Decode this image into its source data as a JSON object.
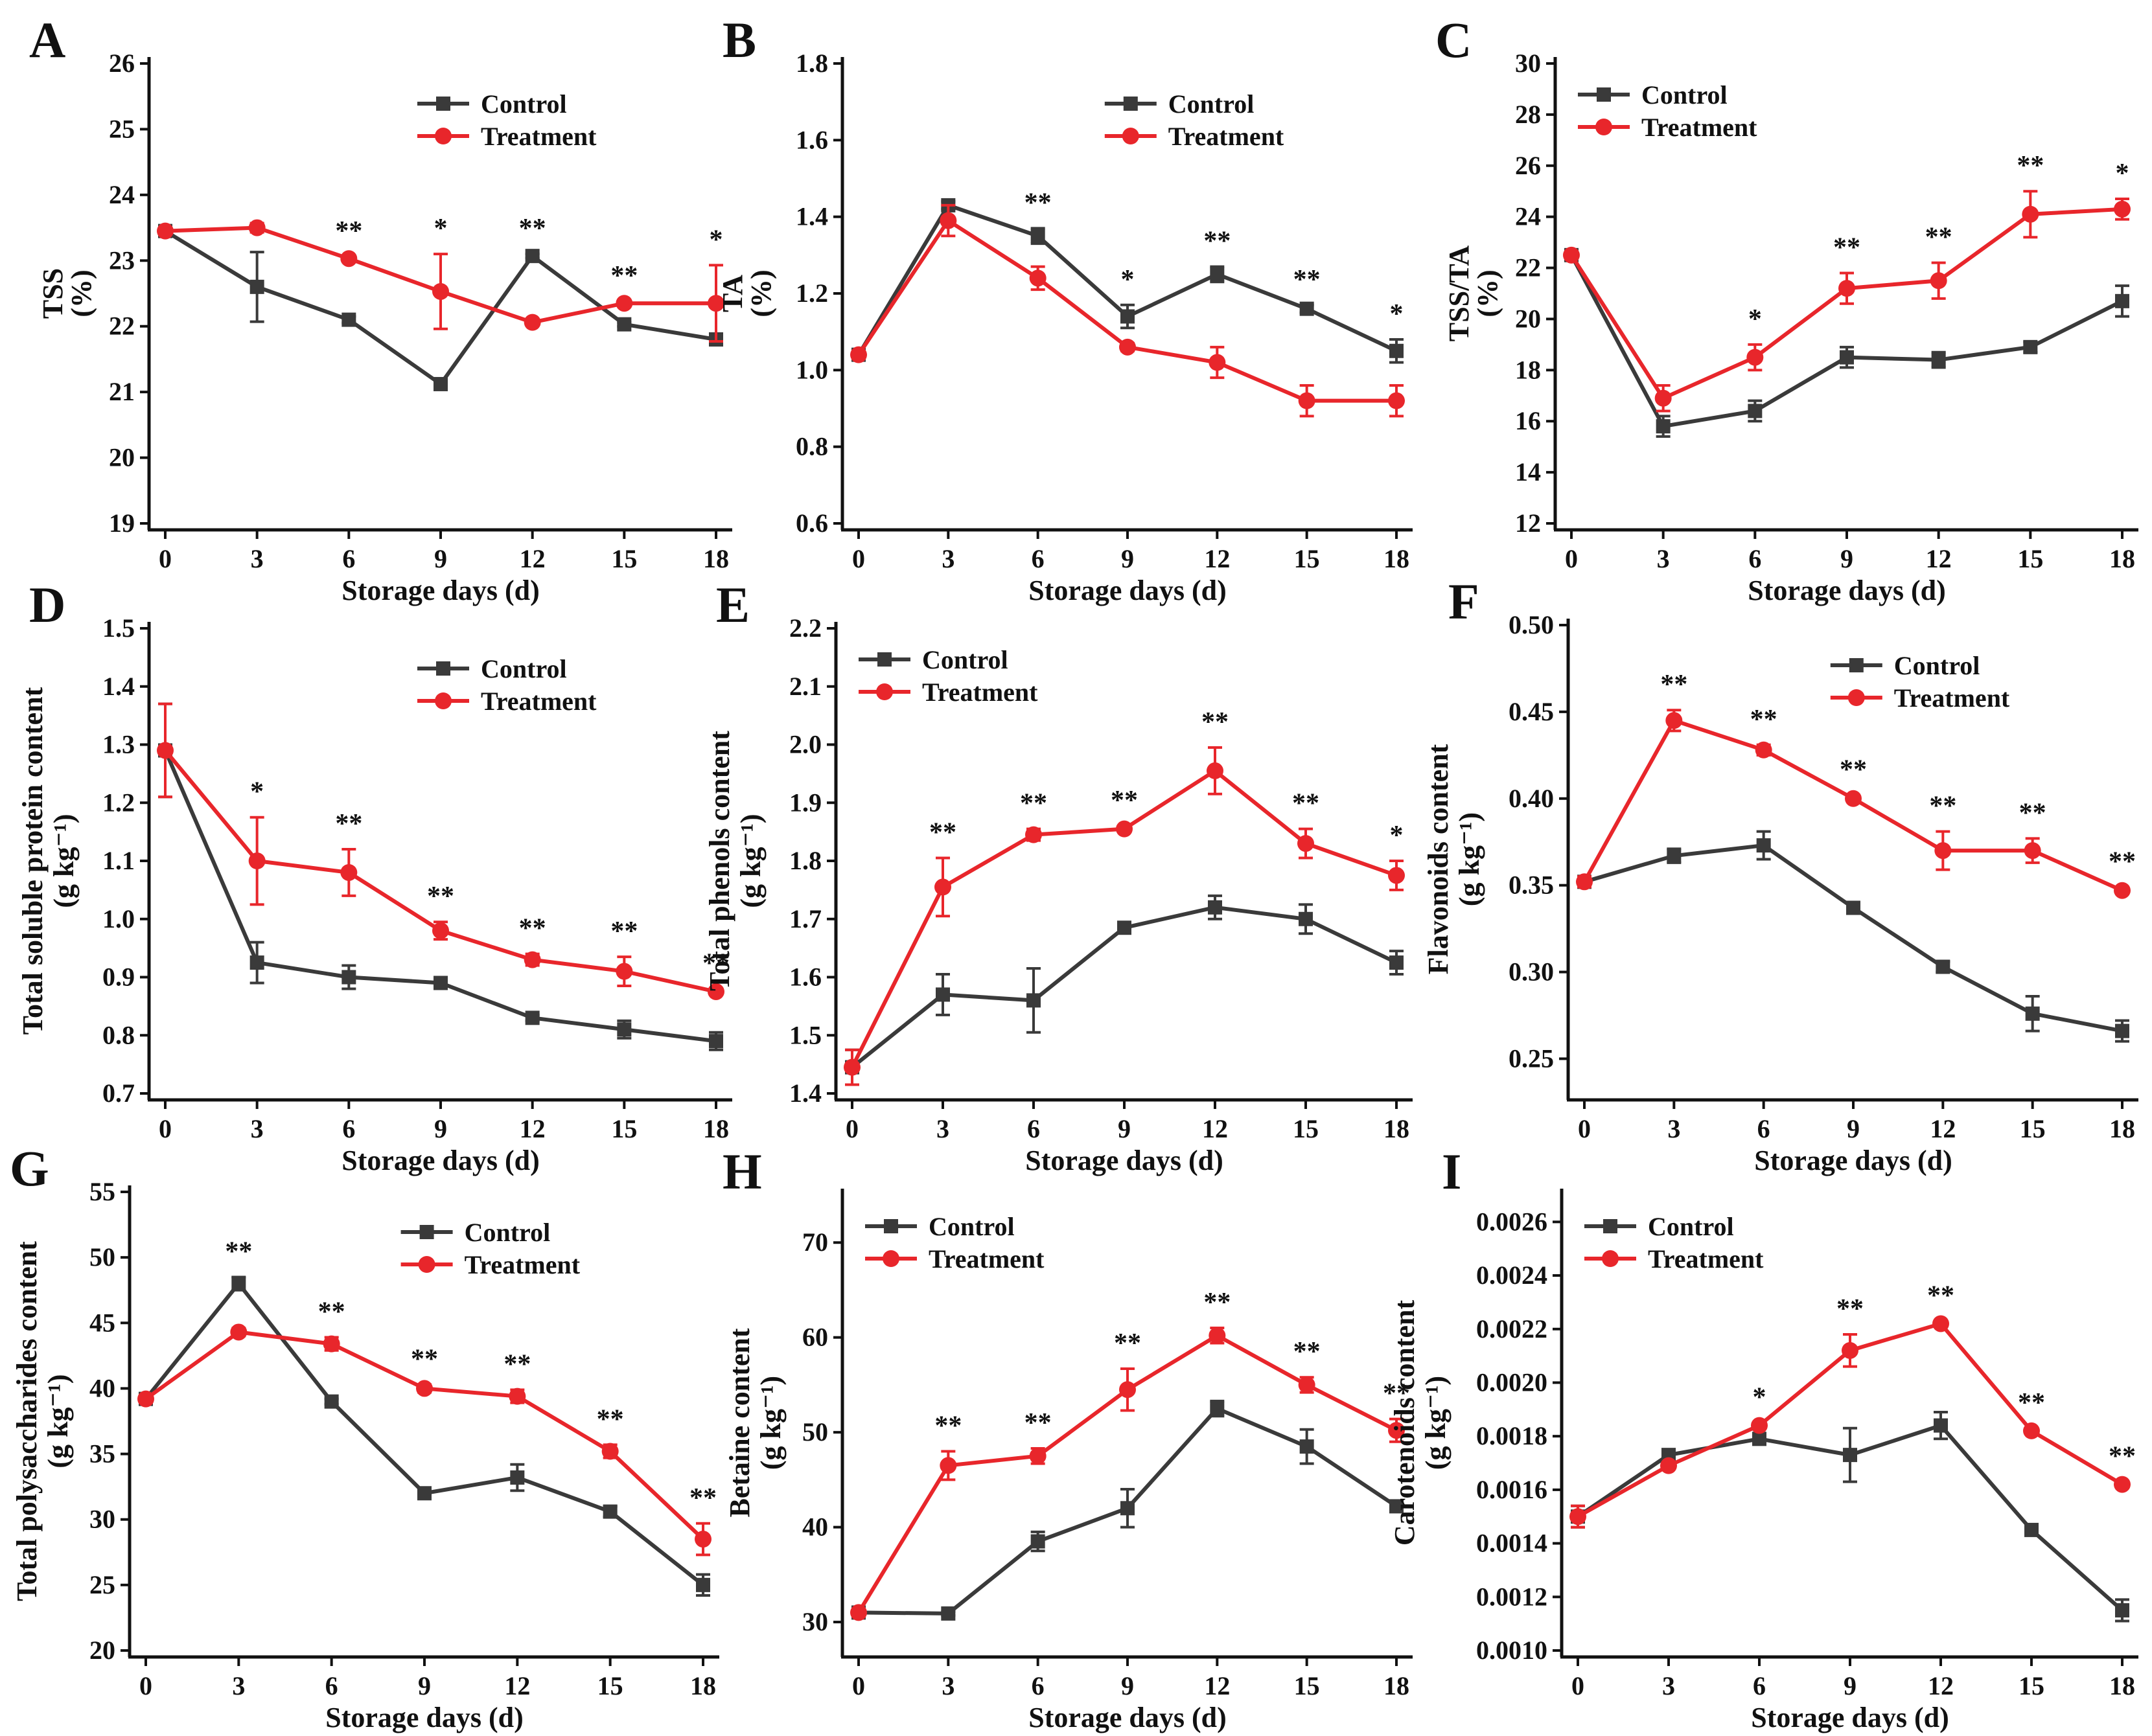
{
  "colors": {
    "control": "#3a3a3a",
    "treatment": "#e8262b"
  },
  "legend": {
    "control": "Control",
    "treatment": "Treatment"
  },
  "chart_data": [
    {
      "type": "line",
      "panel": "A",
      "xlabel": "Storage days (d)",
      "ylabel": [
        "TSS",
        "(%)"
      ],
      "x": [
        0,
        3,
        6,
        9,
        12,
        15,
        18
      ],
      "ylim": [
        19,
        26
      ],
      "yticks": [
        "19",
        "20",
        "21",
        "22",
        "23",
        "24",
        "25",
        "26"
      ],
      "legend_pos": "top-right",
      "series": [
        {
          "name": "Control",
          "values": [
            23.45,
            22.6,
            22.1,
            21.12,
            23.07,
            22.03,
            21.8
          ],
          "errors": [
            0.03,
            0.53,
            0.05,
            0.03,
            0.03,
            0.03,
            0.03
          ]
        },
        {
          "name": "Treatment",
          "values": [
            23.45,
            23.5,
            23.03,
            22.53,
            22.06,
            22.35,
            22.35
          ],
          "errors": [
            0.03,
            0.07,
            0.03,
            0.57,
            0.03,
            0.03,
            0.58
          ]
        }
      ],
      "sig": [
        "",
        "",
        "**",
        "*",
        "**",
        "**",
        "*"
      ]
    },
    {
      "type": "line",
      "panel": "B",
      "xlabel": "Storage days (d)",
      "ylabel": [
        "TA",
        "(%)"
      ],
      "x": [
        0,
        3,
        6,
        9,
        12,
        15,
        18
      ],
      "ylim": [
        0.6,
        1.8
      ],
      "yticks": [
        "0.6",
        "0.8",
        "1.0",
        "1.2",
        "1.4",
        "1.6",
        "1.8"
      ],
      "legend_pos": "top-right",
      "series": [
        {
          "name": "Control",
          "values": [
            1.04,
            1.43,
            1.35,
            1.14,
            1.25,
            1.16,
            1.05
          ],
          "errors": [
            0.005,
            0.01,
            0.02,
            0.03,
            0.02,
            0.01,
            0.03
          ]
        },
        {
          "name": "Treatment",
          "values": [
            1.04,
            1.39,
            1.24,
            1.06,
            1.02,
            0.92,
            0.92
          ],
          "errors": [
            0.005,
            0.04,
            0.03,
            0.01,
            0.04,
            0.04,
            0.04
          ]
        }
      ],
      "sig": [
        "",
        "",
        "**",
        "*",
        "**",
        "**",
        "*"
      ]
    },
    {
      "type": "line",
      "panel": "C",
      "xlabel": "Storage days (d)",
      "ylabel": [
        "TSS/TA",
        "(%)"
      ],
      "x": [
        0,
        3,
        6,
        9,
        12,
        15,
        18
      ],
      "ylim": [
        12,
        30
      ],
      "yticks": [
        "12",
        "14",
        "16",
        "18",
        "20",
        "22",
        "24",
        "26",
        "28",
        "30"
      ],
      "legend_pos": "top-left",
      "series": [
        {
          "name": "Control",
          "values": [
            22.5,
            15.8,
            16.4,
            18.5,
            18.4,
            18.9,
            20.7
          ],
          "errors": [
            0.1,
            0.4,
            0.4,
            0.4,
            0.3,
            0.2,
            0.6
          ]
        },
        {
          "name": "Treatment",
          "values": [
            22.5,
            16.9,
            18.5,
            21.2,
            21.5,
            24.1,
            24.3
          ],
          "errors": [
            0.1,
            0.5,
            0.5,
            0.6,
            0.7,
            0.9,
            0.4
          ]
        }
      ],
      "sig": [
        "",
        "",
        "*",
        "**",
        "**",
        "**",
        "*"
      ]
    },
    {
      "type": "line",
      "panel": "D",
      "xlabel": "Storage days (d)",
      "ylabel": [
        "Total soluble protein content",
        "(g kg⁻¹)"
      ],
      "x": [
        0,
        3,
        6,
        9,
        12,
        15,
        18
      ],
      "ylim": [
        0.7,
        1.5
      ],
      "yticks": [
        "0.7",
        "0.8",
        "0.9",
        "1.0",
        "1.1",
        "1.2",
        "1.3",
        "1.4",
        "1.5"
      ],
      "legend_pos": "top-right",
      "series": [
        {
          "name": "Control",
          "values": [
            1.29,
            0.925,
            0.9,
            0.89,
            0.83,
            0.81,
            0.79
          ],
          "errors": [
            0.08,
            0.035,
            0.02,
            0.005,
            0.005,
            0.015,
            0.015
          ]
        },
        {
          "name": "Treatment",
          "values": [
            1.29,
            1.1,
            1.08,
            0.98,
            0.93,
            0.91,
            0.875
          ],
          "errors": [
            0.08,
            0.075,
            0.04,
            0.015,
            0.01,
            0.025,
            0.005
          ]
        }
      ],
      "sig": [
        "",
        "*",
        "**",
        "**",
        "**",
        "**",
        "**"
      ]
    },
    {
      "type": "line",
      "panel": "E",
      "xlabel": "Storage days (d)",
      "ylabel": [
        "Total phenols content",
        "(g kg⁻¹)"
      ],
      "x": [
        0,
        3,
        6,
        9,
        12,
        15,
        18
      ],
      "ylim": [
        1.4,
        2.2
      ],
      "yticks": [
        "1.4",
        "1.5",
        "1.6",
        "1.7",
        "1.8",
        "1.9",
        "2.0",
        "2.1",
        "2.2"
      ],
      "legend_pos": "top-left",
      "series": [
        {
          "name": "Control",
          "values": [
            1.445,
            1.57,
            1.56,
            1.685,
            1.72,
            1.7,
            1.625
          ],
          "errors": [
            0.03,
            0.035,
            0.055,
            0.005,
            0.02,
            0.025,
            0.02
          ]
        },
        {
          "name": "Treatment",
          "values": [
            1.445,
            1.755,
            1.845,
            1.855,
            1.955,
            1.83,
            1.775
          ],
          "errors": [
            0.03,
            0.05,
            0.01,
            0.005,
            0.04,
            0.025,
            0.025
          ]
        }
      ],
      "sig": [
        "",
        "**",
        "**",
        "**",
        "**",
        "**",
        "*"
      ]
    },
    {
      "type": "line",
      "panel": "F",
      "xlabel": "Storage days (d)",
      "ylabel": [
        "Flavonoids content",
        "(g kg⁻¹)"
      ],
      "x": [
        0,
        3,
        6,
        9,
        12,
        15,
        18
      ],
      "ylim": [
        0.23,
        0.5
      ],
      "yticks": [
        "0.25",
        "0.30",
        "0.35",
        "0.40",
        "0.45",
        "0.50"
      ],
      "legend_pos": "top-right",
      "series": [
        {
          "name": "Control",
          "values": [
            0.352,
            0.367,
            0.373,
            0.337,
            0.303,
            0.276,
            0.266
          ],
          "errors": [
            0.003,
            0.004,
            0.008,
            0.003,
            0.003,
            0.01,
            0.006
          ]
        },
        {
          "name": "Treatment",
          "values": [
            0.352,
            0.445,
            0.428,
            0.4,
            0.37,
            0.37,
            0.347
          ],
          "errors": [
            0.003,
            0.006,
            0.003,
            0.002,
            0.011,
            0.007,
            0.002
          ]
        }
      ],
      "sig": [
        "",
        "**",
        "**",
        "**",
        "**",
        "**",
        "**"
      ]
    },
    {
      "type": "line",
      "panel": "G",
      "xlabel": "Storage days (d)",
      "ylabel": [
        "Total polysaccharides content",
        "(g kg⁻¹)"
      ],
      "x": [
        0,
        3,
        6,
        9,
        12,
        15,
        18
      ],
      "ylim": [
        20,
        55
      ],
      "yticks": [
        "20",
        "25",
        "30",
        "35",
        "40",
        "45",
        "50",
        "55"
      ],
      "legend_pos": "top-right",
      "series": [
        {
          "name": "Control",
          "values": [
            39.2,
            48.0,
            39.0,
            32.0,
            33.2,
            30.6,
            25.0
          ],
          "errors": [
            0.2,
            0.5,
            0.2,
            0.2,
            1.0,
            0.4,
            0.8
          ]
        },
        {
          "name": "Treatment",
          "values": [
            39.2,
            44.3,
            43.4,
            40.0,
            39.4,
            35.2,
            28.5
          ],
          "errors": [
            0.2,
            0.3,
            0.5,
            0.3,
            0.5,
            0.5,
            1.2
          ]
        }
      ],
      "sig": [
        "",
        "**",
        "**",
        "**",
        "**",
        "**",
        "**"
      ]
    },
    {
      "type": "line",
      "panel": "H",
      "xlabel": "Storage days (d)",
      "ylabel": [
        "Betaine  content",
        "(g kg⁻¹)"
      ],
      "x": [
        0,
        3,
        6,
        9,
        12,
        15,
        18
      ],
      "ylim": [
        27,
        75
      ],
      "yticks": [
        "30",
        "40",
        "50",
        "60",
        "70"
      ],
      "legend_pos": "top-left",
      "series": [
        {
          "name": "Control",
          "values": [
            31.0,
            30.9,
            38.5,
            42.0,
            52.5,
            48.5,
            42.2
          ],
          "errors": [
            0.2,
            0.2,
            1.0,
            2.0,
            0.8,
            1.8,
            0.3
          ]
        },
        {
          "name": "Treatment",
          "values": [
            31.0,
            46.5,
            47.5,
            54.5,
            60.2,
            55.0,
            50.2
          ],
          "errors": [
            0.2,
            1.5,
            0.8,
            2.2,
            0.8,
            0.8,
            1.2
          ]
        }
      ],
      "sig": [
        "",
        "**",
        "**",
        "**",
        "**",
        "**",
        "**"
      ]
    },
    {
      "type": "line",
      "panel": "I",
      "xlabel": "Storage days (d)",
      "ylabel": [
        "Carotenoids content",
        "(g kg⁻¹)"
      ],
      "x": [
        0,
        3,
        6,
        9,
        12,
        15,
        18
      ],
      "ylim": [
        0.001,
        0.0027
      ],
      "yticks": [
        "0.0010",
        "0.0012",
        "0.0014",
        "0.0016",
        "0.0018",
        "0.0020",
        "0.0022",
        "0.0024",
        "0.0026"
      ],
      "legend_pos": "top-left",
      "series": [
        {
          "name": "Control",
          "values": [
            0.0015,
            0.00173,
            0.00179,
            0.00173,
            0.00184,
            0.00145,
            0.00115
          ],
          "errors": [
            4e-05,
            1e-05,
            1e-05,
            0.0001,
            5e-05,
            1e-05,
            4e-05
          ]
        },
        {
          "name": "Treatment",
          "values": [
            0.0015,
            0.00169,
            0.00184,
            0.00212,
            0.00222,
            0.00182,
            0.00162
          ],
          "errors": [
            4e-05,
            1e-05,
            1e-05,
            6e-05,
            1e-05,
            1e-05,
            1e-05
          ]
        }
      ],
      "sig": [
        "",
        "",
        "*",
        "**",
        "**",
        "**",
        "**"
      ]
    }
  ]
}
